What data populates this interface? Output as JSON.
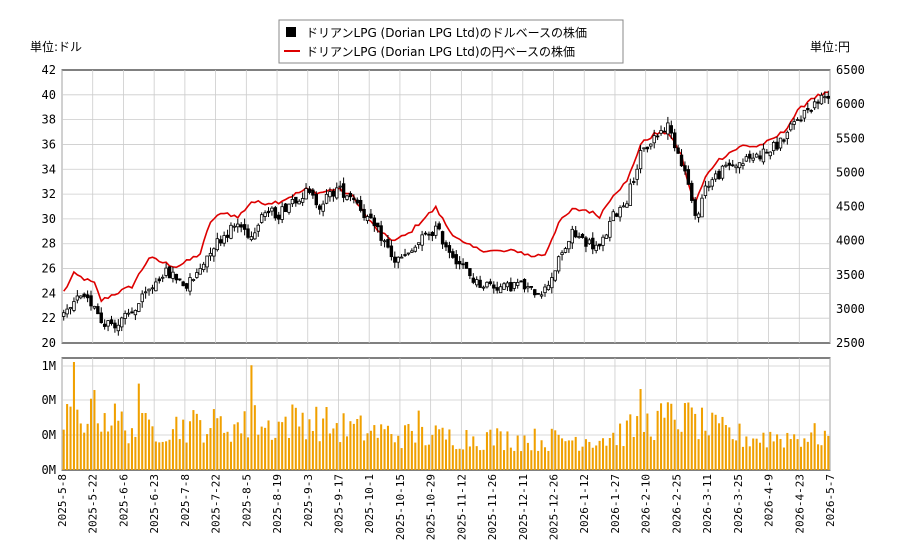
{
  "chart_data": {
    "type": "candlestick",
    "legend": {
      "usd_series": "ドリアンLPG (Dorian LPG Ltd)のドルベースの株価",
      "jpy_series": "ドリアンLPG (Dorian LPG Ltd)の円ベースの株価"
    },
    "units": {
      "left": "単位:ドル",
      "right": "単位:円"
    },
    "colors": {
      "candle": "#000000",
      "yen_line": "#dd0000",
      "volume": "#f0a000",
      "grid": "#cccccc"
    },
    "y_left": {
      "min": 20,
      "max": 42,
      "ticks": [
        "20",
        "22",
        "24",
        "26",
        "28",
        "30",
        "32",
        "34",
        "36",
        "38",
        "40",
        "42"
      ]
    },
    "y_right": {
      "min": 2500,
      "max": 6500,
      "ticks": [
        "2500",
        "3000",
        "3500",
        "4000",
        "4500",
        "5000",
        "5500",
        "6000",
        "6500"
      ]
    },
    "volume_axis": {
      "ticks": [
        "0M",
        "0M",
        "0M",
        "1M"
      ]
    },
    "x_labels": [
      "2025-5-8",
      "2025-5-22",
      "2025-6-6",
      "2025-6-23",
      "2025-7-8",
      "2025-7-22",
      "2025-8-5",
      "2025-8-19",
      "2025-9-3",
      "2025-9-17",
      "2025-10-1",
      "2025-10-15",
      "2025-10-29",
      "2025-11-12",
      "2025-11-26",
      "2025-12-11",
      "2025-12-26",
      "2026-1-12",
      "2026-1-27",
      "2026-2-10",
      "2026-2-25",
      "2026-3-11",
      "2026-3-25",
      "2026-4-9",
      "2026-4-23",
      "2026-5-7"
    ],
    "price_anchors": [
      [
        0,
        22.0
      ],
      [
        4,
        23.5
      ],
      [
        9,
        23.2
      ],
      [
        11,
        21.8
      ],
      [
        16,
        21.5
      ],
      [
        20,
        22.5
      ],
      [
        25,
        24.2
      ],
      [
        29,
        25.7
      ],
      [
        33,
        25.3
      ],
      [
        36,
        24.6
      ],
      [
        39,
        25.5
      ],
      [
        43,
        27.6
      ],
      [
        47,
        28.7
      ],
      [
        51,
        29.6
      ],
      [
        55,
        28.6
      ],
      [
        58,
        30.6
      ],
      [
        63,
        30.4
      ],
      [
        67,
        31.6
      ],
      [
        71,
        32.1
      ],
      [
        75,
        31.2
      ],
      [
        80,
        32.4
      ],
      [
        85,
        31.8
      ],
      [
        89,
        30.0
      ],
      [
        93,
        28.6
      ],
      [
        97,
        26.6
      ],
      [
        101,
        27.0
      ],
      [
        105,
        28.4
      ],
      [
        109,
        29.2
      ],
      [
        113,
        27.5
      ],
      [
        117,
        26.1
      ],
      [
        121,
        24.8
      ],
      [
        125,
        24.7
      ],
      [
        129,
        24.4
      ],
      [
        133,
        24.8
      ],
      [
        137,
        24.2
      ],
      [
        141,
        24.3
      ],
      [
        145,
        26.6
      ],
      [
        149,
        28.8
      ],
      [
        153,
        28.2
      ],
      [
        157,
        27.6
      ],
      [
        161,
        30.2
      ],
      [
        165,
        31.6
      ],
      [
        169,
        35.1
      ],
      [
        173,
        36.6
      ],
      [
        177,
        37.5
      ],
      [
        181,
        34.7
      ],
      [
        183,
        32.8
      ],
      [
        185,
        29.9
      ],
      [
        188,
        32.6
      ],
      [
        191,
        33.4
      ],
      [
        195,
        34.3
      ],
      [
        199,
        34.6
      ],
      [
        203,
        35.1
      ],
      [
        207,
        35.5
      ],
      [
        211,
        36.5
      ],
      [
        215,
        38.0
      ],
      [
        219,
        39.1
      ],
      [
        224,
        40.1
      ]
    ],
    "yen_anchors": [
      [
        0,
        3250
      ],
      [
        3,
        3510
      ],
      [
        9,
        3370
      ],
      [
        11,
        3120
      ],
      [
        14,
        3200
      ],
      [
        20,
        3330
      ],
      [
        25,
        3750
      ],
      [
        29,
        3680
      ],
      [
        33,
        3620
      ],
      [
        36,
        3690
      ],
      [
        40,
        3810
      ],
      [
        43,
        4280
      ],
      [
        47,
        4420
      ],
      [
        51,
        4340
      ],
      [
        55,
        4570
      ],
      [
        58,
        4550
      ],
      [
        63,
        4570
      ],
      [
        67,
        4660
      ],
      [
        71,
        4750
      ],
      [
        75,
        4700
      ],
      [
        80,
        4760
      ],
      [
        85,
        4640
      ],
      [
        89,
        4320
      ],
      [
        93,
        4100
      ],
      [
        97,
        4000
      ],
      [
        101,
        4100
      ],
      [
        105,
        4300
      ],
      [
        109,
        4480
      ],
      [
        113,
        4150
      ],
      [
        117,
        3960
      ],
      [
        121,
        3880
      ],
      [
        125,
        3850
      ],
      [
        129,
        3840
      ],
      [
        133,
        3850
      ],
      [
        137,
        3770
      ],
      [
        141,
        3800
      ],
      [
        145,
        4260
      ],
      [
        149,
        4450
      ],
      [
        153,
        4450
      ],
      [
        157,
        4360
      ],
      [
        161,
        4680
      ],
      [
        165,
        4860
      ],
      [
        169,
        5410
      ],
      [
        173,
        5560
      ],
      [
        177,
        5590
      ],
      [
        181,
        5250
      ],
      [
        183,
        4820
      ],
      [
        185,
        4550
      ],
      [
        188,
        4920
      ],
      [
        191,
        5150
      ],
      [
        195,
        5290
      ],
      [
        199,
        5390
      ],
      [
        203,
        5380
      ],
      [
        207,
        5460
      ],
      [
        211,
        5600
      ],
      [
        215,
        5890
      ],
      [
        219,
        6090
      ],
      [
        224,
        6160
      ]
    ],
    "volume_anchors": [
      [
        0,
        0.45
      ],
      [
        10,
        0.55
      ],
      [
        20,
        0.38
      ],
      [
        40,
        0.42
      ],
      [
        60,
        0.4
      ],
      [
        70,
        0.48
      ],
      [
        80,
        0.4
      ],
      [
        100,
        0.32
      ],
      [
        120,
        0.3
      ],
      [
        140,
        0.28
      ],
      [
        160,
        0.3
      ],
      [
        170,
        0.42
      ],
      [
        180,
        0.5
      ],
      [
        190,
        0.38
      ],
      [
        200,
        0.3
      ],
      [
        224,
        0.32
      ]
    ],
    "volume_spikes": [
      [
        3,
        1.0
      ],
      [
        8,
        0.66
      ],
      [
        22,
        0.8
      ],
      [
        55,
        0.97
      ],
      [
        56,
        0.6
      ],
      [
        104,
        0.55
      ],
      [
        169,
        0.75
      ],
      [
        182,
        0.62
      ]
    ],
    "n_days": 225
  }
}
